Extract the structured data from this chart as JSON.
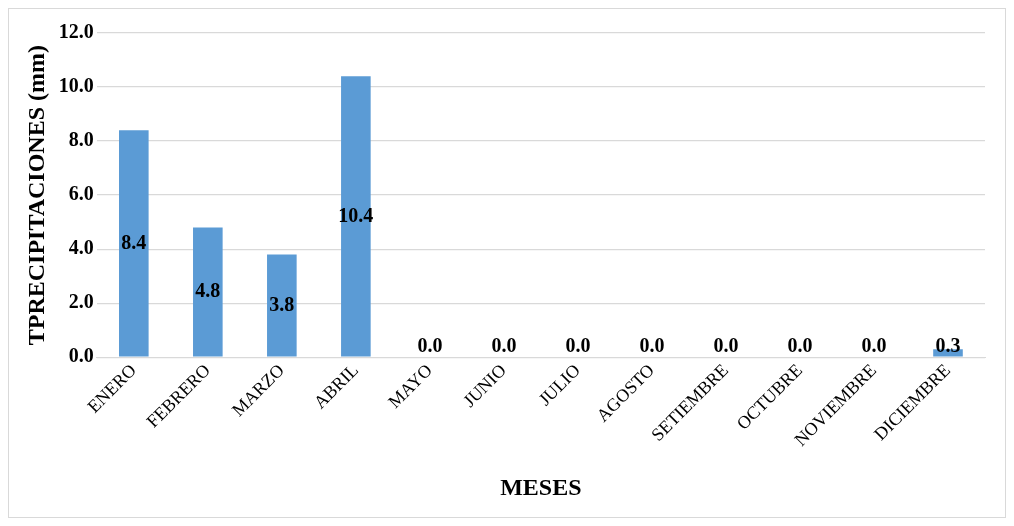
{
  "chart_data": {
    "type": "bar",
    "xlabel": "MESES",
    "ylabel": "TPRECIPITACIONES (mm)",
    "categories": [
      "ENERO",
      "FEBRERO",
      "MARZO",
      "ABRIL",
      "MAYO",
      "JUNIO",
      "JULIO",
      "AGOSTO",
      "SETIEMBRE",
      "OCTUBRE",
      "NOVIEMBRE",
      "DICIEMBRE"
    ],
    "values": [
      8.4,
      4.8,
      3.8,
      10.4,
      0,
      0,
      0,
      0,
      0,
      0,
      0,
      0.3
    ],
    "value_labels": [
      "8.4",
      "4.8",
      "3.8",
      "10.4",
      "0.0",
      "0.0",
      "0.0",
      "0.0",
      "0.0",
      "0.0",
      "0.0",
      "0.3"
    ],
    "color": "#5b9bd5",
    "ylim": [
      0,
      12
    ],
    "yticks": [
      {
        "value": 0,
        "label": "0.0"
      },
      {
        "value": 2,
        "label": "2.0"
      },
      {
        "value": 4,
        "label": "4.0"
      },
      {
        "value": 6,
        "label": "6.0"
      },
      {
        "value": 8,
        "label": "8.0"
      },
      {
        "value": 10,
        "label": "10.0"
      },
      {
        "value": 12,
        "label": "12.0"
      }
    ],
    "grid": "y",
    "legend": false
  }
}
